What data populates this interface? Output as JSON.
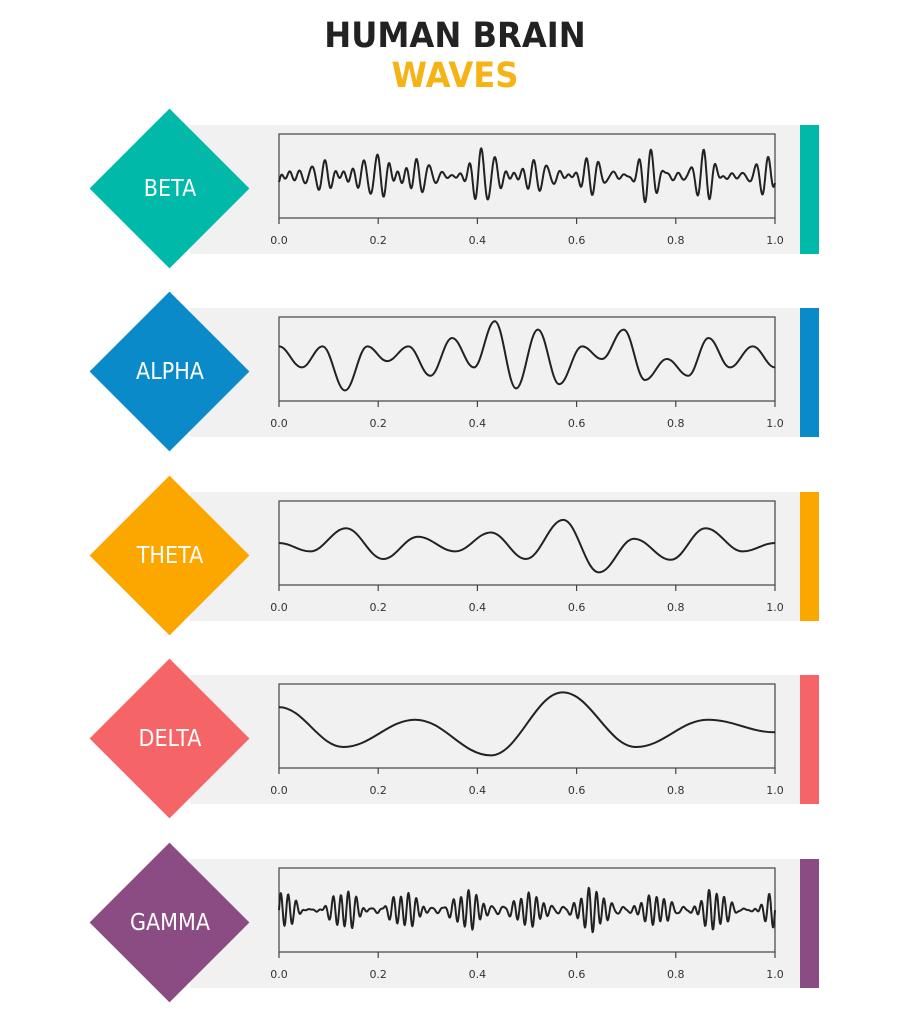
{
  "title": {
    "line1": "HUMAN BRAIN",
    "line2": "WAVES",
    "line1_color": "#222222",
    "line2_color": "#f6b316"
  },
  "axis": {
    "ticks": [
      "0.0",
      "0.2",
      "0.4",
      "0.6",
      "0.8",
      "1.0"
    ]
  },
  "waves": [
    {
      "name": "BETA",
      "color": "#00b9a9"
    },
    {
      "name": "ALPHA",
      "color": "#0b8ac9"
    },
    {
      "name": "THETA",
      "color": "#fca600"
    },
    {
      "name": "DELTA",
      "color": "#f56466"
    },
    {
      "name": "GAMMA",
      "color": "#8b4b83"
    }
  ],
  "chart_data": [
    {
      "type": "line",
      "title": "BETA",
      "xlabel": "",
      "ylabel": "",
      "xlim": [
        0.0,
        1.0
      ],
      "xticks": [
        0.0,
        0.2,
        0.4,
        0.6,
        0.8,
        1.0
      ],
      "description": "high-frequency irregular oscillation (~40 cycles over 0-1), moderate amplitude",
      "generator": {
        "seed": 3,
        "components": [
          [
            38,
            0.55
          ],
          [
            47,
            0.35
          ],
          [
            29,
            0.25
          ],
          [
            55,
            0.2
          ]
        ],
        "amplitude": 0.55
      },
      "color": "#00b9a9"
    },
    {
      "type": "line",
      "title": "ALPHA",
      "xlim": [
        0.0,
        1.0
      ],
      "xticks": [
        0.0,
        0.2,
        0.4,
        0.6,
        0.8,
        1.0
      ],
      "description": "medium-frequency oscillation (~11 cycles), varying amplitude",
      "x": [
        0.0,
        0.046,
        0.088,
        0.133,
        0.178,
        0.218,
        0.261,
        0.305,
        0.349,
        0.393,
        0.435,
        0.478,
        0.522,
        0.565,
        0.611,
        0.651,
        0.695,
        0.738,
        0.782,
        0.825,
        0.866,
        0.909,
        0.955,
        1.0
      ],
      "y": [
        0.3,
        -0.2,
        0.3,
        -0.75,
        0.3,
        -0.05,
        0.3,
        -0.4,
        0.5,
        -0.2,
        0.9,
        -0.7,
        0.7,
        -0.6,
        0.3,
        0.0,
        0.7,
        -0.5,
        0.0,
        -0.4,
        0.5,
        -0.2,
        0.3,
        -0.2
      ],
      "color": "#0b8ac9"
    },
    {
      "type": "line",
      "title": "THETA",
      "xlim": [
        0.0,
        1.0
      ],
      "xticks": [
        0.0,
        0.2,
        0.4,
        0.6,
        0.8,
        1.0
      ],
      "description": "lower-frequency oscillation (~7 cycles)",
      "x": [
        0.0,
        0.063,
        0.135,
        0.21,
        0.28,
        0.355,
        0.427,
        0.498,
        0.573,
        0.645,
        0.716,
        0.79,
        0.86,
        0.935,
        1.0
      ],
      "y": [
        0.0,
        -0.2,
        0.35,
        -0.38,
        0.15,
        -0.2,
        0.25,
        -0.38,
        0.55,
        -0.7,
        0.1,
        -0.4,
        0.35,
        -0.2,
        0.0
      ],
      "color": "#fca600"
    },
    {
      "type": "line",
      "title": "DELTA",
      "xlim": [
        0.0,
        1.0
      ],
      "xticks": [
        0.0,
        0.2,
        0.4,
        0.6,
        0.8,
        1.0
      ],
      "description": "lowest-frequency slow wave (~3 cycles)",
      "x": [
        0.0,
        0.13,
        0.275,
        0.427,
        0.572,
        0.72,
        0.865,
        1.0
      ],
      "y": [
        0.45,
        -0.5,
        0.15,
        -0.7,
        0.8,
        -0.5,
        0.15,
        -0.15
      ],
      "color": "#f56466"
    },
    {
      "type": "line",
      "title": "GAMMA",
      "xlim": [
        0.0,
        1.0
      ],
      "xticks": [
        0.0,
        0.2,
        0.4,
        0.6,
        0.8,
        1.0
      ],
      "description": "highest-frequency oscillation (~65 cycles), irregular amplitude",
      "generator": {
        "seed": 7,
        "components": [
          [
            66,
            0.5
          ],
          [
            58,
            0.35
          ],
          [
            74,
            0.25
          ],
          [
            41,
            0.15
          ]
        ],
        "amplitude": 0.5
      },
      "color": "#8b4b83"
    }
  ]
}
